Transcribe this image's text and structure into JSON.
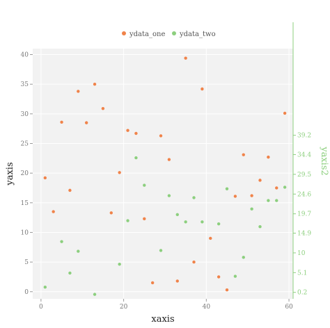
{
  "chart_data": {
    "type": "scatter",
    "xlabel": "xaxis",
    "ylabel": "yaxis",
    "y2label": "yaxis2",
    "xlim": [
      -2,
      61
    ],
    "ylim": [
      -1.2,
      41
    ],
    "y2lim": [
      -1.4,
      60.7
    ],
    "xticks": [
      0,
      20,
      40,
      60
    ],
    "yticks": [
      0,
      5,
      10,
      15,
      20,
      25,
      30,
      35,
      40
    ],
    "y2ticks": [
      0.2,
      5.1,
      10,
      14.9,
      19.7,
      24.6,
      29.5,
      34.4,
      39.2
    ],
    "y2tick_labels": [
      "0.2",
      "5.1",
      "10",
      "14.9",
      "19.7",
      "24.6",
      "29.5",
      "34.4",
      "39.2"
    ],
    "grid": true,
    "legend_position": "top",
    "series": [
      {
        "name": "ydata_one",
        "axis": "y",
        "color": "#f0834a",
        "points": [
          [
            1,
            19.2
          ],
          [
            3,
            13.5
          ],
          [
            5,
            28.6
          ],
          [
            7,
            17.1
          ],
          [
            9,
            33.8
          ],
          [
            11,
            28.5
          ],
          [
            13,
            35.0
          ],
          [
            15,
            30.9
          ],
          [
            17,
            13.3
          ],
          [
            19,
            20.1
          ],
          [
            21,
            27.2
          ],
          [
            23,
            26.7
          ],
          [
            25,
            12.3
          ],
          [
            27,
            1.5
          ],
          [
            29,
            26.3
          ],
          [
            31,
            22.3
          ],
          [
            33,
            1.8
          ],
          [
            35,
            39.4
          ],
          [
            37,
            5.0
          ],
          [
            39,
            34.2
          ],
          [
            41,
            9.0
          ],
          [
            43,
            2.5
          ],
          [
            45,
            0.3
          ],
          [
            47,
            16.1
          ],
          [
            49,
            23.1
          ],
          [
            51,
            16.2
          ],
          [
            53,
            18.8
          ],
          [
            55,
            22.7
          ],
          [
            57,
            17.5
          ],
          [
            59,
            30.1
          ]
        ]
      },
      {
        "name": "ydata_two",
        "axis": "y2",
        "color": "#8ccf7e",
        "points": [
          [
            1,
            1.5
          ],
          [
            5,
            12.8
          ],
          [
            7,
            5.0
          ],
          [
            9,
            10.4
          ],
          [
            13,
            -0.3
          ],
          [
            19,
            7.2
          ],
          [
            21,
            18.0
          ],
          [
            23,
            33.6
          ],
          [
            25,
            26.8
          ],
          [
            29,
            10.6
          ],
          [
            31,
            24.2
          ],
          [
            33,
            19.5
          ],
          [
            35,
            17.7
          ],
          [
            37,
            23.7
          ],
          [
            39,
            17.7
          ],
          [
            43,
            17.2
          ],
          [
            45,
            25.9
          ],
          [
            47,
            4.2
          ],
          [
            49,
            8.9
          ],
          [
            51,
            20.9
          ],
          [
            53,
            16.5
          ],
          [
            55,
            23.0
          ],
          [
            57,
            23.0
          ],
          [
            59,
            26.3
          ]
        ]
      }
    ]
  }
}
